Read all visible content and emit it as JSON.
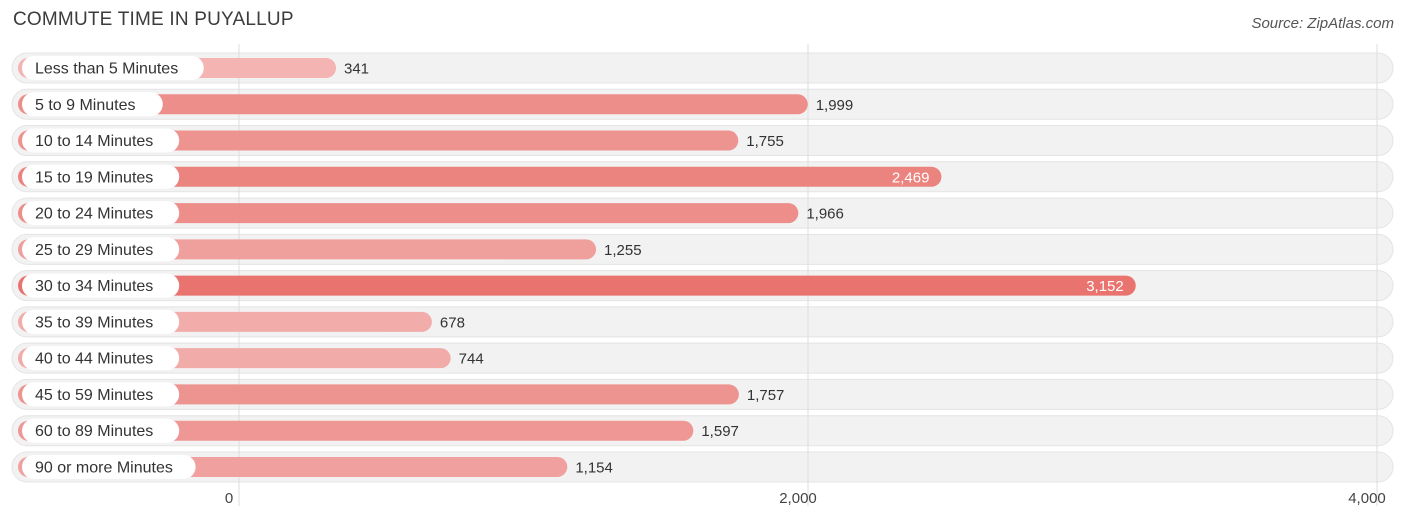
{
  "header": {
    "title": "COMMUTE TIME IN PUYALLUP",
    "source": "Source: ZipAtlas.com"
  },
  "colors": {
    "bar_high": "#e8736f",
    "bar_low": "#f3b4b2",
    "track": "#f2f2f2",
    "grid": "#dddddd"
  },
  "chart_data": {
    "type": "bar",
    "orientation": "horizontal",
    "title": "COMMUTE TIME IN PUYALLUP",
    "categories": [
      "Less than 5 Minutes",
      "5 to 9 Minutes",
      "10 to 14 Minutes",
      "15 to 19 Minutes",
      "20 to 24 Minutes",
      "25 to 29 Minutes",
      "30 to 34 Minutes",
      "35 to 39 Minutes",
      "40 to 44 Minutes",
      "45 to 59 Minutes",
      "60 to 89 Minutes",
      "90 or more Minutes"
    ],
    "values": [
      341,
      1999,
      1755,
      2469,
      1966,
      1255,
      3152,
      678,
      744,
      1757,
      1597,
      1154
    ],
    "value_labels": [
      "341",
      "1,999",
      "1,755",
      "2,469",
      "1,966",
      "1,255",
      "3,152",
      "678",
      "744",
      "1,757",
      "1,597",
      "1,154"
    ],
    "xlim": [
      0,
      4000
    ],
    "xticks": [
      0,
      2000,
      4000
    ],
    "xtick_labels": [
      "0",
      "2,000",
      "4,000"
    ],
    "grid": true
  }
}
